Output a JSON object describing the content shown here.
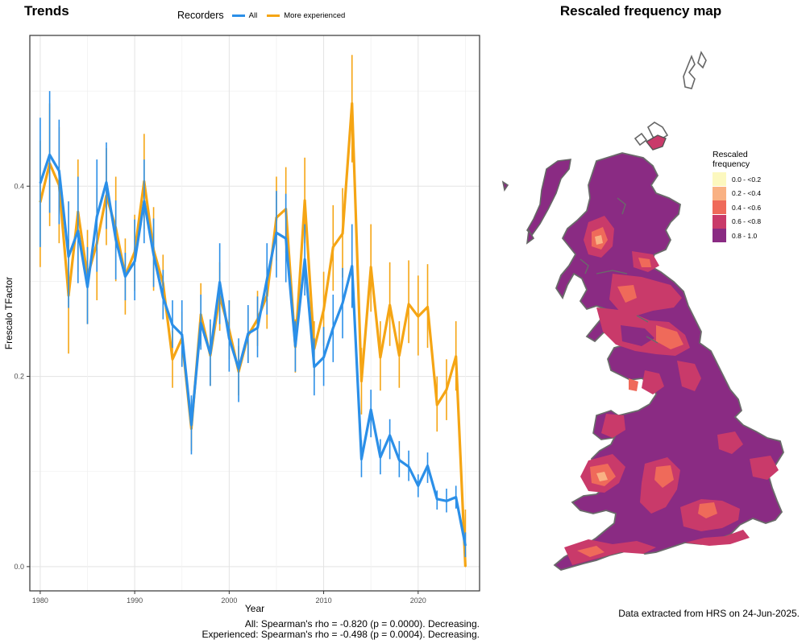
{
  "left_panel": {
    "title": "Trends"
  },
  "right_panel": {
    "title": "Rescaled frequency map"
  },
  "legend": {
    "title": "Recorders",
    "items": [
      {
        "label": "All",
        "color": "#2b8fe8"
      },
      {
        "label": "More experienced",
        "color": "#f5a514"
      }
    ]
  },
  "stats": {
    "all": "All: Spearman's rho = -0.820 (p = 0.0000). Decreasing.",
    "experienced": "Experienced: Spearman's rho = -0.498 (p = 0.0004). Decreasing."
  },
  "footer_note": "Data extracted from HRS on 24-Jun-2025.",
  "map_legend": {
    "title_line1": "Rescaled",
    "title_line2": "frequency",
    "bins": [
      {
        "label": "0.0 - <0.2",
        "color": "#fcf8bf"
      },
      {
        "label": "0.2 - <0.4",
        "color": "#f9b183"
      },
      {
        "label": "0.4 - <0.6",
        "color": "#ef6a5a"
      },
      {
        "label": "0.6 - <0.8",
        "color": "#c93a6a"
      },
      {
        "label": "0.8 - 1.0",
        "color": "#8a2b83"
      }
    ]
  },
  "chart_data": {
    "type": "line",
    "xlabel": "Year",
    "ylabel": "Frescalo TFactor",
    "xlim": [
      1978.9,
      2026.5
    ],
    "ylim": [
      -0.0255,
      0.5585
    ],
    "xticks": [
      1980,
      1990,
      2000,
      2010,
      2020
    ],
    "yticks": [
      0.0,
      0.2,
      0.4
    ],
    "ytick_labels": [
      "0.0",
      "0.2",
      "0.4"
    ],
    "grid": true,
    "x": [
      1980,
      1981,
      1982,
      1983,
      1984,
      1985,
      1986,
      1987,
      1988,
      1989,
      1990,
      1991,
      1992,
      1993,
      1994,
      1995,
      1996,
      1997,
      1998,
      1999,
      2000,
      2001,
      2002,
      2003,
      2004,
      2005,
      2006,
      2007,
      2008,
      2009,
      2010,
      2011,
      2012,
      2013,
      2014,
      2015,
      2016,
      2017,
      2018,
      2019,
      2020,
      2021,
      2022,
      2023,
      2024,
      2025
    ],
    "series": [
      {
        "name": "All",
        "color": "#2b8fe8",
        "values": [
          0.403,
          0.433,
          0.416,
          0.326,
          0.353,
          0.294,
          0.368,
          0.404,
          0.344,
          0.305,
          0.321,
          0.384,
          0.328,
          0.283,
          0.254,
          0.244,
          0.149,
          0.256,
          0.224,
          0.299,
          0.24,
          0.208,
          0.245,
          0.251,
          0.302,
          0.351,
          0.345,
          0.232,
          0.323,
          0.21,
          0.22,
          0.251,
          0.277,
          0.316,
          0.113,
          0.165,
          0.115,
          0.138,
          0.112,
          0.105,
          0.085,
          0.106,
          0.071,
          0.069,
          0.073,
          0.022
        ],
        "low": [
          0.336,
          0.372,
          0.36,
          0.272,
          0.298,
          0.255,
          0.31,
          0.355,
          0.302,
          0.28,
          0.28,
          0.34,
          0.294,
          0.26,
          0.23,
          0.21,
          0.118,
          0.228,
          0.19,
          0.255,
          0.205,
          0.173,
          0.214,
          0.22,
          0.265,
          0.304,
          0.299,
          0.205,
          0.285,
          0.18,
          0.19,
          0.215,
          0.24,
          0.272,
          0.094,
          0.136,
          0.097,
          0.113,
          0.094,
          0.09,
          0.073,
          0.088,
          0.06,
          0.057,
          0.061,
          0.01
        ],
        "high": [
          0.472,
          0.5,
          0.47,
          0.384,
          0.41,
          0.336,
          0.428,
          0.446,
          0.385,
          0.33,
          0.365,
          0.428,
          0.366,
          0.312,
          0.28,
          0.28,
          0.18,
          0.286,
          0.26,
          0.34,
          0.28,
          0.24,
          0.275,
          0.284,
          0.34,
          0.395,
          0.392,
          0.258,
          0.36,
          0.24,
          0.252,
          0.286,
          0.314,
          0.36,
          0.133,
          0.186,
          0.134,
          0.155,
          0.132,
          0.122,
          0.097,
          0.12,
          0.08,
          0.082,
          0.085,
          0.036
        ]
      },
      {
        "name": "More experienced",
        "color": "#f5a514",
        "values": [
          0.383,
          0.424,
          0.401,
          0.285,
          0.373,
          0.305,
          0.34,
          0.39,
          0.356,
          0.306,
          0.331,
          0.405,
          0.333,
          0.298,
          0.218,
          0.24,
          0.145,
          0.265,
          0.222,
          0.284,
          0.249,
          0.205,
          0.243,
          0.26,
          0.285,
          0.367,
          0.376,
          0.231,
          0.385,
          0.229,
          0.27,
          0.336,
          0.35,
          0.487,
          0.195,
          0.315,
          0.22,
          0.275,
          0.222,
          0.276,
          0.263,
          0.273,
          0.17,
          0.186,
          0.221,
          0.0
        ],
        "low": [
          0.315,
          0.358,
          0.34,
          0.224,
          0.31,
          0.255,
          0.28,
          0.338,
          0.3,
          0.265,
          0.29,
          0.355,
          0.29,
          0.268,
          0.188,
          0.212,
          0.122,
          0.232,
          0.19,
          0.248,
          0.218,
          0.18,
          0.215,
          0.232,
          0.25,
          0.322,
          0.33,
          0.204,
          0.34,
          0.2,
          0.232,
          0.29,
          0.304,
          0.425,
          0.16,
          0.268,
          0.185,
          0.232,
          0.188,
          0.235,
          0.222,
          0.23,
          0.142,
          0.154,
          0.185,
          0.0
        ],
        "high": [
          0.448,
          0.487,
          0.462,
          0.344,
          0.428,
          0.354,
          0.398,
          0.44,
          0.41,
          0.345,
          0.37,
          0.455,
          0.378,
          0.328,
          0.248,
          0.268,
          0.168,
          0.298,
          0.255,
          0.32,
          0.28,
          0.232,
          0.272,
          0.29,
          0.32,
          0.41,
          0.42,
          0.26,
          0.43,
          0.258,
          0.31,
          0.38,
          0.398,
          0.538,
          0.23,
          0.36,
          0.258,
          0.32,
          0.258,
          0.322,
          0.306,
          0.318,
          0.2,
          0.218,
          0.258,
          0.06
        ]
      }
    ]
  }
}
